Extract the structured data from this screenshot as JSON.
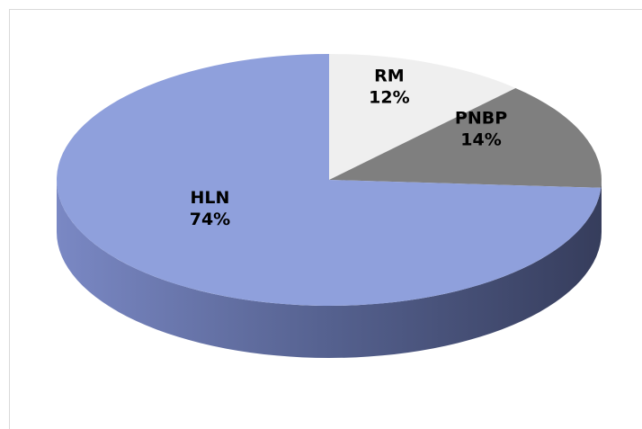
{
  "chart_data": {
    "type": "pie",
    "categories": [
      "RM",
      "PNBP",
      "HLN"
    ],
    "values": [
      12,
      14,
      74
    ],
    "value_labels": [
      "12%",
      "14%",
      "74%"
    ],
    "colors": [
      "#efefef",
      "#7f7f7f",
      "#8fa0dc"
    ]
  }
}
